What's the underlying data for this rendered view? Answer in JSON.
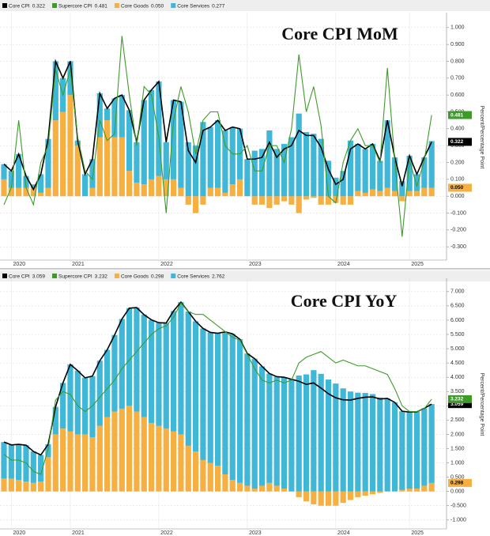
{
  "chart_data": [
    {
      "type": "bar-line",
      "title": "Core CPI MoM",
      "ylabel": "Percent/Percentage Point",
      "categories": [
        null,
        "2020",
        null,
        null,
        null,
        null,
        null,
        null,
        null,
        "2021",
        null,
        null,
        null,
        null,
        null,
        null,
        null,
        null,
        null,
        null,
        null,
        "2022",
        null,
        null,
        null,
        null,
        null,
        null,
        null,
        null,
        null,
        null,
        null,
        "2023",
        null,
        null,
        null,
        null,
        null,
        null,
        null,
        null,
        null,
        null,
        null,
        "2024",
        null,
        null,
        null,
        null,
        null,
        null,
        null,
        null,
        null,
        "2025",
        null,
        null,
        null
      ],
      "ylim": [
        -0.36,
        1.06
      ],
      "yticks": [
        {
          "value": -0.3,
          "label": "-0.300"
        },
        {
          "value": -0.2,
          "label": "-0.200"
        },
        {
          "value": -0.1,
          "label": "-0.100"
        },
        {
          "value": 0,
          "label": "0.000"
        },
        {
          "value": 0.1,
          "label": "0.100"
        },
        {
          "value": 0.2,
          "label": "0.200"
        },
        {
          "value": 0.3,
          "label": "0.300"
        },
        {
          "value": 0.4,
          "label": "0.400"
        },
        {
          "value": 0.5,
          "label": "0.500"
        },
        {
          "value": 0.6,
          "label": "0.600"
        },
        {
          "value": 0.7,
          "label": "0.700"
        },
        {
          "value": 0.8,
          "label": "0.800"
        },
        {
          "value": 0.9,
          "label": "0.900"
        },
        {
          "value": 1.0,
          "label": "1.000"
        }
      ],
      "grid": true,
      "series": [
        {
          "name": "Core CPI",
          "mark": "line",
          "color": "#000000",
          "last_label": "0.322",
          "values": [
            0.19,
            0.15,
            0.25,
            0.12,
            0.04,
            0.13,
            0.34,
            0.8,
            0.7,
            0.8,
            0.33,
            0.13,
            0.22,
            0.61,
            0.52,
            0.58,
            0.6,
            0.51,
            0.32,
            0.57,
            0.63,
            0.68,
            0.32,
            0.57,
            0.56,
            0.27,
            0.2,
            0.39,
            0.41,
            0.45,
            0.39,
            0.41,
            0.4,
            0.22,
            0.22,
            0.23,
            0.32,
            0.23,
            0.28,
            0.3,
            0.39,
            0.36,
            0.36,
            0.29,
            0.16,
            0.07,
            0.1,
            0.28,
            0.31,
            0.28,
            0.31,
            0.21,
            0.45,
            0.23,
            0.06,
            0.24,
            0.13,
            0.23,
            0.322
          ]
        },
        {
          "name": "Supercore CPI",
          "mark": "line",
          "color": "#3e9b2a",
          "last_label": "0.481",
          "values": [
            -0.05,
            0.05,
            0.45,
            0.05,
            -0.05,
            0.2,
            0.3,
            0.75,
            0.6,
            0.75,
            0.35,
            0.15,
            0.1,
            0.45,
            0.33,
            0.37,
            0.95,
            0.6,
            0.3,
            0.65,
            0.6,
            0.35,
            -0.1,
            0.45,
            0.65,
            0.5,
            0.25,
            0.45,
            0.5,
            0.5,
            0.3,
            0.25,
            0.25,
            0.3,
            0.15,
            0.15,
            0.3,
            0.3,
            0.2,
            0.4,
            0.84,
            0.5,
            0.65,
            0.42,
            0.0,
            -0.04,
            0.2,
            0.33,
            0.4,
            0.3,
            0.3,
            0.2,
            0.76,
            0.21,
            -0.24,
            0.21,
            0.06,
            0.21,
            0.481
          ]
        },
        {
          "name": "Core Goods",
          "mark": "bar",
          "color": "#f5b041",
          "last_label": "0.050",
          "values": [
            0.1,
            0.05,
            0.05,
            0.05,
            0.05,
            0.02,
            0.05,
            0.45,
            0.5,
            0.6,
            0.3,
            0.0,
            0.05,
            0.35,
            0.45,
            0.35,
            0.35,
            0.15,
            0.08,
            0.07,
            0.1,
            0.12,
            0.1,
            0.1,
            0.05,
            -0.05,
            -0.1,
            -0.05,
            0.05,
            0.05,
            0.02,
            0.07,
            0.1,
            0.0,
            -0.05,
            -0.05,
            -0.07,
            -0.05,
            -0.03,
            -0.05,
            -0.1,
            -0.02,
            -0.01,
            -0.05,
            -0.05,
            -0.04,
            -0.05,
            -0.05,
            0.03,
            0.02,
            0.04,
            0.03,
            0.05,
            0.03,
            -0.03,
            0.03,
            0.03,
            0.05,
            0.05
          ]
        },
        {
          "name": "Core Services",
          "mark": "bar",
          "color": "#3fb8d8",
          "last_label": "0.277",
          "values": [
            0.09,
            0.1,
            0.2,
            0.07,
            0.02,
            0.11,
            0.29,
            0.35,
            0.2,
            0.2,
            0.03,
            0.13,
            0.17,
            0.26,
            0.07,
            0.23,
            0.25,
            0.36,
            0.24,
            0.5,
            0.53,
            0.56,
            0.22,
            0.47,
            0.51,
            0.32,
            0.3,
            0.44,
            0.36,
            0.4,
            0.37,
            0.34,
            0.3,
            0.22,
            0.27,
            0.28,
            0.39,
            0.28,
            0.31,
            0.35,
            0.49,
            0.38,
            0.37,
            0.34,
            0.21,
            0.11,
            0.15,
            0.33,
            0.28,
            0.26,
            0.27,
            0.18,
            0.4,
            0.2,
            0.09,
            0.21,
            0.1,
            0.18,
            0.277
          ]
        }
      ]
    },
    {
      "type": "bar-line",
      "title": "Core CPI YoY",
      "ylabel": "Percent/Percentage Point",
      "categories": [
        null,
        "2020",
        null,
        null,
        null,
        null,
        null,
        null,
        null,
        "2021",
        null,
        null,
        null,
        null,
        null,
        null,
        null,
        null,
        null,
        null,
        null,
        "2022",
        null,
        null,
        null,
        null,
        null,
        null,
        null,
        null,
        null,
        null,
        null,
        "2023",
        null,
        null,
        null,
        null,
        null,
        null,
        null,
        null,
        null,
        null,
        null,
        "2024",
        null,
        null,
        null,
        null,
        null,
        null,
        null,
        null,
        null,
        "2025",
        null,
        null,
        null
      ],
      "ylim": [
        -1.2,
        7.3
      ],
      "yticks": [
        {
          "value": -1.0,
          "label": "-1.000"
        },
        {
          "value": -0.5,
          "label": "-0.500"
        },
        {
          "value": 0,
          "label": "0.000"
        },
        {
          "value": 0.5,
          "label": "0.500"
        },
        {
          "value": 1.0,
          "label": "1.000"
        },
        {
          "value": 1.5,
          "label": "1.500"
        },
        {
          "value": 2.0,
          "label": "2.000"
        },
        {
          "value": 2.5,
          "label": "2.500"
        },
        {
          "value": 3.0,
          "label": "3.000"
        },
        {
          "value": 3.5,
          "label": "3.500"
        },
        {
          "value": 4.0,
          "label": "4.000"
        },
        {
          "value": 4.5,
          "label": "4.500"
        },
        {
          "value": 5.0,
          "label": "5.000"
        },
        {
          "value": 5.5,
          "label": "5.500"
        },
        {
          "value": 6.0,
          "label": "6.000"
        },
        {
          "value": 6.5,
          "label": "6.500"
        },
        {
          "value": 7.0,
          "label": "7.000"
        }
      ],
      "grid": true,
      "series": [
        {
          "name": "Core CPI",
          "mark": "line",
          "color": "#000000",
          "last_label": "3.059",
          "values": [
            1.73,
            1.63,
            1.65,
            1.62,
            1.4,
            1.28,
            1.65,
            2.96,
            3.8,
            4.45,
            4.23,
            3.98,
            4.04,
            4.58,
            4.96,
            5.48,
            6.04,
            6.42,
            6.44,
            6.19,
            6.01,
            5.91,
            5.9,
            6.32,
            6.63,
            6.3,
            5.96,
            5.71,
            5.57,
            5.54,
            5.59,
            5.52,
            5.33,
            4.83,
            4.65,
            4.38,
            4.13,
            4.02,
            4.0,
            3.93,
            3.86,
            3.75,
            3.8,
            3.62,
            3.42,
            3.28,
            3.21,
            3.2,
            3.26,
            3.3,
            3.31,
            3.24,
            3.26,
            3.12,
            2.81,
            2.78,
            2.79,
            2.91,
            3.059
          ]
        },
        {
          "name": "Supercore CPI",
          "mark": "line",
          "color": "#3e9b2a",
          "last_label": "3.232",
          "values": [
            1.3,
            1.1,
            1.1,
            1.0,
            0.7,
            0.6,
            1.5,
            3.2,
            3.5,
            3.4,
            3.0,
            2.8,
            3.0,
            3.3,
            3.6,
            3.9,
            4.3,
            4.6,
            4.9,
            5.2,
            5.5,
            5.7,
            5.8,
            6.1,
            6.6,
            6.3,
            6.2,
            6.2,
            6.0,
            5.8,
            5.6,
            5.4,
            5.3,
            4.8,
            4.3,
            3.9,
            3.8,
            3.9,
            3.8,
            3.9,
            4.5,
            4.7,
            4.8,
            4.9,
            4.7,
            4.5,
            4.6,
            4.5,
            4.4,
            4.4,
            4.3,
            4.2,
            4.1,
            3.6,
            3.0,
            2.8,
            2.8,
            2.9,
            3.232
          ]
        },
        {
          "name": "Core Goods",
          "mark": "bar",
          "color": "#f5b041",
          "last_label": "0.298",
          "values": [
            0.45,
            0.45,
            0.4,
            0.35,
            0.3,
            0.35,
            1.2,
            2.0,
            2.2,
            2.1,
            2.0,
            2.0,
            1.9,
            2.3,
            2.6,
            2.8,
            2.9,
            3.0,
            2.8,
            2.6,
            2.4,
            2.3,
            2.2,
            2.1,
            2.0,
            1.6,
            1.4,
            1.1,
            1.0,
            0.9,
            0.6,
            0.4,
            0.3,
            0.2,
            0.1,
            0.2,
            0.3,
            0.2,
            0.1,
            0.0,
            -0.2,
            -0.35,
            -0.45,
            -0.5,
            -0.5,
            -0.5,
            -0.4,
            -0.3,
            -0.2,
            -0.15,
            -0.1,
            -0.05,
            0.0,
            0.0,
            0.05,
            0.1,
            0.1,
            0.2,
            0.298
          ]
        },
        {
          "name": "Core Services",
          "mark": "bar",
          "color": "#3fb8d8",
          "last_label": "2.762",
          "values": [
            1.28,
            1.18,
            1.25,
            1.27,
            1.1,
            0.93,
            0.45,
            0.96,
            1.6,
            2.35,
            2.23,
            1.98,
            2.14,
            2.28,
            2.36,
            2.68,
            3.14,
            3.42,
            3.64,
            3.59,
            3.61,
            3.61,
            3.7,
            4.22,
            4.63,
            4.7,
            4.56,
            4.61,
            4.57,
            4.64,
            4.99,
            5.12,
            5.03,
            4.63,
            4.55,
            4.18,
            3.83,
            3.82,
            3.9,
            3.93,
            4.06,
            4.1,
            4.25,
            4.12,
            3.92,
            3.78,
            3.61,
            3.5,
            3.46,
            3.45,
            3.41,
            3.29,
            3.26,
            3.12,
            2.76,
            2.68,
            2.69,
            2.71,
            2.762
          ]
        }
      ]
    }
  ]
}
